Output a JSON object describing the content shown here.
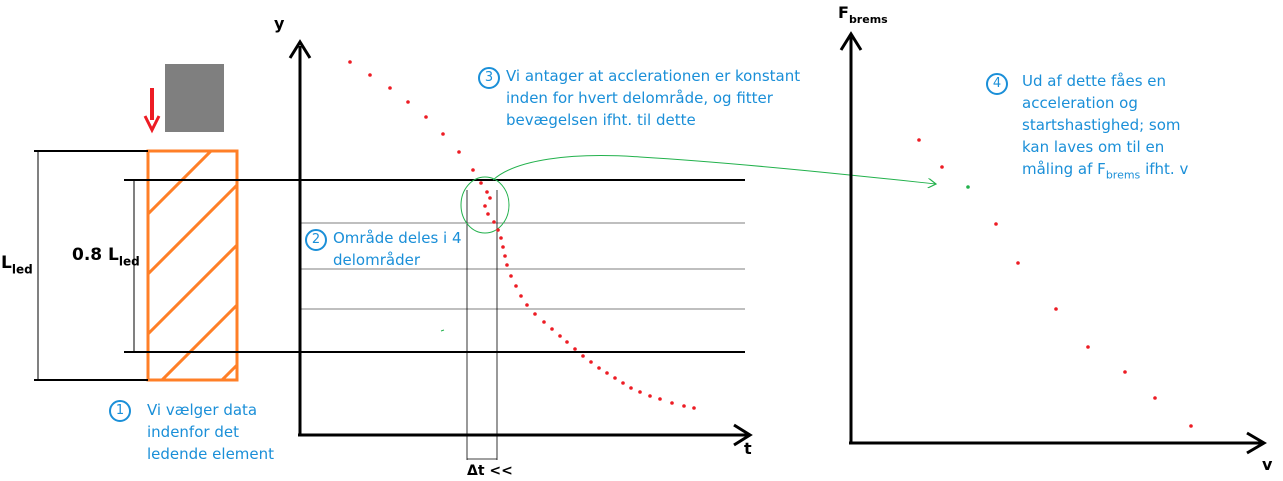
{
  "labels": {
    "l_led_main": "L",
    "l_led_sub": "led",
    "l_08_main": "0.8 L",
    "l_08_sub": "led",
    "y_axis": "y",
    "t_axis": "t",
    "dt": "Δt <<",
    "f_main": "F",
    "f_sub": "brems",
    "v_axis": "v"
  },
  "notes": {
    "n1": {
      "num": "1",
      "lines": [
        "Vi vælger data",
        "indenfor det",
        "ledende element"
      ]
    },
    "n2": {
      "num": "2",
      "lines": [
        "Område deles i 4",
        "delområder"
      ]
    },
    "n3": {
      "num": "3",
      "lines": [
        "Vi antager at acclerationen er konstant",
        "inden for hvert delområde, og fitter",
        "bevægelsen ifht. til dette"
      ]
    },
    "n4": {
      "num": "4",
      "lines": [
        "Ud af dette fåes en",
        "acceleration og",
        "startshastighed; som",
        "kan laves om til en"
      ],
      "last_prefix": "måling af F",
      "last_sub": "brems",
      "last_suffix": " ifht. v"
    }
  },
  "colors": {
    "note_blue": "#1a8fd8",
    "orange": "#ff7f27",
    "red": "#ed1c24",
    "grey_block": "#7f7f7f",
    "green": "#22b14c",
    "black": "#000000"
  },
  "series": {
    "y_vs_t": [
      [
        350,
        62
      ],
      [
        370,
        75
      ],
      [
        390,
        88
      ],
      [
        408,
        102
      ],
      [
        426,
        117
      ],
      [
        443,
        134
      ],
      [
        459,
        152
      ],
      [
        473,
        170
      ],
      [
        481,
        183
      ],
      [
        487,
        192
      ],
      [
        490,
        198
      ],
      [
        485,
        206
      ],
      [
        488,
        214
      ],
      [
        494,
        222
      ],
      [
        498,
        230
      ],
      [
        501,
        238
      ],
      [
        503,
        247
      ],
      [
        505,
        256
      ],
      [
        507,
        265
      ],
      [
        511,
        276
      ],
      [
        516,
        286
      ],
      [
        521,
        296
      ],
      [
        527,
        305
      ],
      [
        535,
        314
      ],
      [
        544,
        322
      ],
      [
        552,
        329
      ],
      [
        560,
        336
      ],
      [
        567,
        342
      ],
      [
        575,
        349
      ],
      [
        583,
        356
      ],
      [
        591,
        362
      ],
      [
        599,
        368
      ],
      [
        607,
        373
      ],
      [
        615,
        378
      ],
      [
        623,
        383
      ],
      [
        631,
        388
      ],
      [
        640,
        392
      ],
      [
        650,
        396
      ],
      [
        660,
        399
      ],
      [
        672,
        403
      ],
      [
        684,
        406
      ],
      [
        694,
        408
      ]
    ],
    "f_vs_v": [
      [
        919,
        140
      ],
      [
        942,
        167
      ],
      [
        996,
        224
      ],
      [
        1018,
        263
      ],
      [
        1056,
        309
      ],
      [
        1088,
        347
      ],
      [
        1125,
        372
      ],
      [
        1155,
        398
      ],
      [
        1191,
        426
      ]
    ],
    "f_vs_v_highlight": [
      [
        968,
        187
      ]
    ]
  }
}
